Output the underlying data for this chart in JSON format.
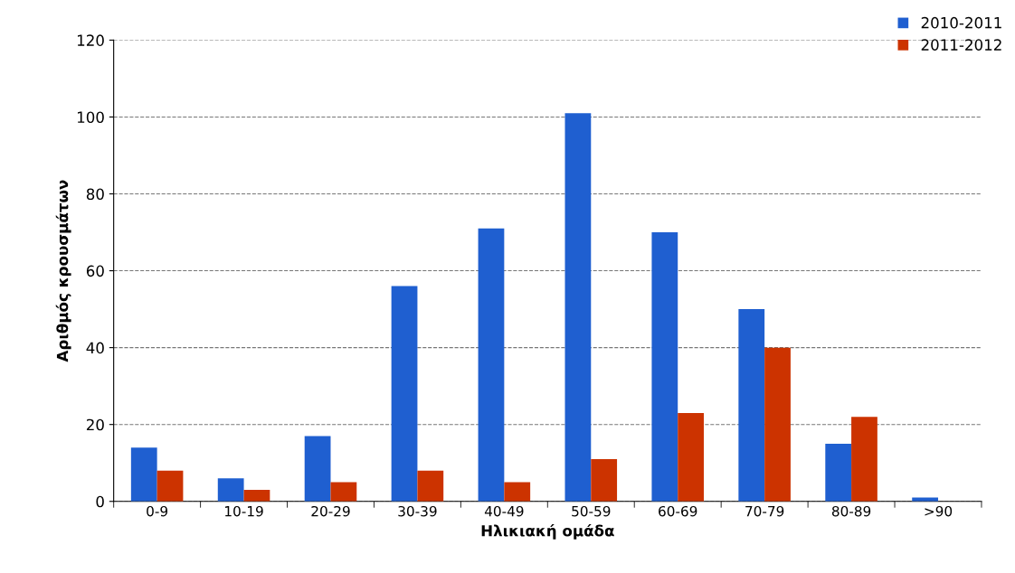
{
  "chart_data": {
    "type": "bar",
    "xlabel": "Ηλικιακή ομάδα",
    "ylabel": "Αριθμός κρουσμάτων",
    "categories": [
      "0-9",
      "10-19",
      "20-29",
      "30-39",
      "40-49",
      "50-59",
      "60-69",
      "70-79",
      "80-89",
      ">90"
    ],
    "series": [
      {
        "name": "2010-2011",
        "color": "#1f5fd0",
        "values": [
          14,
          6,
          17,
          56,
          71,
          101,
          70,
          50,
          15,
          1
        ]
      },
      {
        "name": "2011-2012",
        "color": "#cc3300",
        "values": [
          8,
          3,
          5,
          8,
          5,
          11,
          23,
          40,
          22,
          0
        ]
      }
    ],
    "ylim": [
      0,
      120
    ],
    "yticks": [
      0,
      20,
      40,
      60,
      80,
      100,
      120
    ],
    "grid": "y",
    "legend": "top right"
  }
}
